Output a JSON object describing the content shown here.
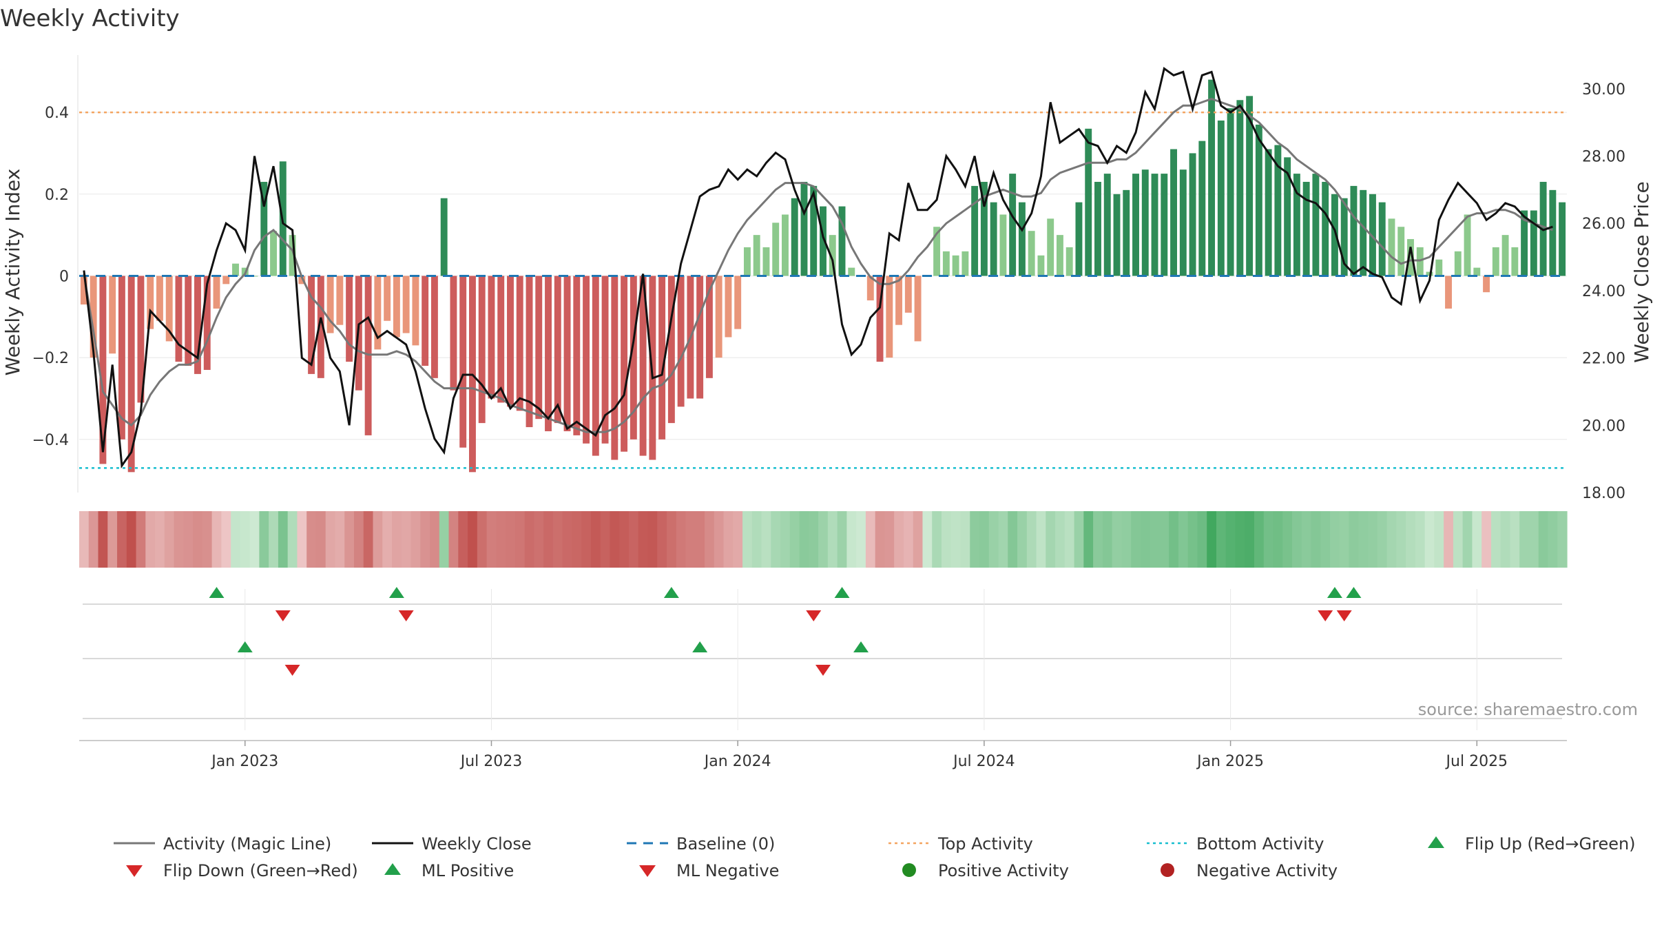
{
  "chart_data": {
    "type": "bar",
    "title": "Weekly Activity",
    "ylabel_left": "Weekly Activity Index",
    "ylabel_right": "Weekly Close Price",
    "source": "source: sharemaestro.com",
    "left_axis": {
      "ylim": [
        -0.53,
        0.54
      ],
      "ticks": [
        0.4,
        0.2,
        0,
        -0.2,
        -0.4
      ],
      "tick_labels": [
        "0.4",
        "0.2",
        "0",
        "−0.2",
        "−0.4"
      ]
    },
    "right_axis": {
      "ylim": [
        18.0,
        31.0
      ],
      "ticks": [
        30,
        28,
        26,
        24,
        22,
        20,
        18
      ],
      "tick_labels": [
        "30.00",
        "28.00",
        "26.00",
        "24.00",
        "22.00",
        "20.00",
        "18.00"
      ]
    },
    "x_ticks": [
      {
        "week": 17,
        "label": "Jan 2023"
      },
      {
        "week": 43,
        "label": "Jul 2023"
      },
      {
        "week": 69,
        "label": "Jan 2024"
      },
      {
        "week": 95,
        "label": "Jul 2024"
      },
      {
        "week": 121,
        "label": "Jan 2025"
      },
      {
        "week": 147,
        "label": "Jul 2025"
      }
    ],
    "weeks": 157,
    "activity": [
      -0.07,
      -0.2,
      -0.46,
      -0.19,
      -0.4,
      -0.48,
      -0.31,
      -0.13,
      -0.11,
      -0.16,
      -0.21,
      -0.22,
      -0.24,
      -0.23,
      -0.08,
      -0.02,
      0.03,
      0.02,
      0.0,
      0.23,
      0.11,
      0.28,
      0.1,
      -0.02,
      -0.24,
      -0.25,
      -0.14,
      -0.12,
      -0.21,
      -0.28,
      -0.39,
      -0.18,
      -0.11,
      -0.15,
      -0.14,
      -0.17,
      -0.22,
      -0.25,
      0.19,
      -0.28,
      -0.42,
      -0.48,
      -0.36,
      -0.3,
      -0.31,
      -0.32,
      -0.33,
      -0.37,
      -0.35,
      -0.38,
      -0.36,
      -0.38,
      -0.39,
      -0.41,
      -0.44,
      -0.41,
      -0.45,
      -0.43,
      -0.4,
      -0.44,
      -0.45,
      -0.4,
      -0.36,
      -0.32,
      -0.3,
      -0.3,
      -0.25,
      -0.2,
      -0.15,
      -0.13,
      0.07,
      0.1,
      0.07,
      0.13,
      0.15,
      0.19,
      0.23,
      0.22,
      0.17,
      0.1,
      0.17,
      0.02,
      0.0,
      -0.06,
      -0.21,
      -0.2,
      -0.12,
      -0.09,
      -0.16,
      0.0,
      0.12,
      0.06,
      0.05,
      0.06,
      0.22,
      0.23,
      0.18,
      0.15,
      0.25,
      0.18,
      0.11,
      0.05,
      0.14,
      0.1,
      0.07,
      0.18,
      0.36,
      0.23,
      0.25,
      0.2,
      0.21,
      0.25,
      0.26,
      0.25,
      0.25,
      0.31,
      0.26,
      0.3,
      0.33,
      0.48,
      0.38,
      0.41,
      0.43,
      0.44,
      0.37,
      0.31,
      0.32,
      0.29,
      0.25,
      0.23,
      0.25,
      0.23,
      0.2,
      0.19,
      0.22,
      0.21,
      0.2,
      0.18,
      0.14,
      0.12,
      0.09,
      0.07,
      0.01,
      0.04,
      -0.08,
      0.06,
      0.15,
      0.02,
      -0.04,
      0.07,
      0.1,
      0.07,
      0.16,
      0.16,
      0.23,
      0.21,
      0.18
    ],
    "close": [
      24.6,
      22.2,
      19.2,
      21.8,
      18.8,
      19.2,
      20.4,
      23.4,
      23.1,
      22.8,
      22.4,
      22.2,
      22.0,
      24.2,
      25.2,
      26.0,
      25.8,
      25.2,
      28.0,
      26.5,
      27.7,
      26.0,
      25.8,
      22.0,
      21.8,
      23.2,
      22.0,
      21.6,
      20.0,
      23.0,
      23.2,
      22.6,
      22.8,
      22.6,
      22.4,
      21.6,
      20.5,
      19.6,
      19.2,
      20.8,
      21.5,
      21.5,
      21.2,
      20.8,
      21.1,
      20.5,
      20.8,
      20.7,
      20.5,
      20.2,
      20.6,
      19.9,
      20.1,
      19.9,
      19.7,
      20.3,
      20.5,
      20.9,
      22.5,
      24.5,
      21.4,
      21.5,
      23.2,
      24.8,
      25.8,
      26.8,
      27.0,
      27.1,
      27.6,
      27.3,
      27.6,
      27.4,
      27.8,
      28.1,
      27.9,
      27.0,
      26.3,
      26.9,
      25.6,
      24.9,
      23.0,
      22.1,
      22.4,
      23.2,
      23.5,
      25.7,
      25.5,
      27.2,
      26.4,
      26.4,
      26.7,
      28.0,
      27.6,
      27.1,
      28.0,
      26.5,
      27.5,
      26.7,
      26.2,
      25.8,
      26.3,
      27.4,
      29.6,
      28.4,
      28.6,
      28.8,
      28.4,
      28.3,
      27.8,
      28.3,
      28.1,
      28.7,
      29.9,
      29.4,
      30.6,
      30.4,
      30.5,
      29.4,
      30.4,
      30.5,
      29.5,
      29.3,
      29.5,
      29.1,
      28.5,
      28.1,
      27.7,
      27.5,
      26.9,
      26.7,
      26.6,
      26.3,
      25.8,
      24.8,
      24.5,
      24.7,
      24.5,
      24.4,
      23.8,
      23.6,
      25.3,
      23.7,
      24.3,
      26.1,
      26.7,
      27.2,
      26.9,
      26.6,
      26.1,
      26.3,
      26.6,
      26.5,
      26.2,
      26.0,
      25.8,
      25.9
    ],
    "magic_line": [
      24.5,
      22.8,
      21.0,
      20.6,
      20.2,
      20.0,
      20.3,
      20.9,
      21.3,
      21.6,
      21.8,
      21.8,
      21.9,
      22.5,
      23.2,
      23.8,
      24.2,
      24.5,
      25.2,
      25.6,
      25.8,
      25.5,
      25.2,
      24.4,
      23.8,
      23.5,
      23.1,
      22.8,
      22.4,
      22.2,
      22.1,
      22.1,
      22.1,
      22.2,
      22.1,
      21.9,
      21.6,
      21.3,
      21.1,
      21.1,
      21.1,
      21.1,
      21.0,
      20.9,
      20.8,
      20.6,
      20.5,
      20.4,
      20.3,
      20.2,
      20.1,
      20.0,
      19.9,
      19.8,
      19.8,
      19.8,
      19.9,
      20.1,
      20.4,
      20.8,
      21.1,
      21.2,
      21.5,
      22.0,
      22.6,
      23.3,
      24.0,
      24.6,
      25.2,
      25.7,
      26.1,
      26.4,
      26.7,
      27.0,
      27.2,
      27.2,
      27.2,
      27.1,
      26.8,
      26.5,
      26.0,
      25.3,
      24.8,
      24.4,
      24.2,
      24.2,
      24.3,
      24.6,
      25.0,
      25.3,
      25.7,
      26.0,
      26.2,
      26.4,
      26.6,
      26.8,
      26.9,
      27.0,
      26.9,
      26.8,
      26.8,
      26.9,
      27.3,
      27.5,
      27.6,
      27.7,
      27.8,
      27.8,
      27.8,
      27.9,
      27.9,
      28.1,
      28.4,
      28.7,
      29.0,
      29.3,
      29.5,
      29.5,
      29.6,
      29.7,
      29.6,
      29.5,
      29.4,
      29.2,
      29.0,
      28.7,
      28.4,
      28.2,
      27.9,
      27.7,
      27.5,
      27.3,
      27.0,
      26.6,
      26.2,
      25.9,
      25.6,
      25.3,
      25.0,
      24.8,
      24.9,
      24.9,
      25.0,
      25.3,
      25.6,
      25.9,
      26.2,
      26.3,
      26.3,
      26.4,
      26.4,
      26.3,
      26.1,
      26.0,
      25.9,
      25.8
    ],
    "top_activity": 0.4,
    "bottom_activity": -0.47,
    "flip_up_weeks": [
      14,
      33,
      62,
      80,
      132,
      134
    ],
    "flip_down_weeks": [
      21,
      34,
      77,
      131,
      133
    ],
    "ml_positive_weeks": [
      17,
      65,
      82
    ],
    "ml_negative_weeks": [
      22,
      78
    ],
    "colors": {
      "green_strong": "#2e8b57",
      "green_light": "#8cc98c",
      "red_strong": "#cd5c5c",
      "red_light": "#e9967a",
      "magic_line": "#777777",
      "close_line": "#111111",
      "baseline": "#1f77b4",
      "top_line": "#f4a460",
      "bottom_line": "#17becf",
      "marker_up": "#22a04b",
      "marker_down": "#d62728",
      "dot_positive": "#228b22",
      "dot_negative": "#b22222"
    },
    "legend": [
      {
        "label": "Activity (Magic Line)",
        "kind": "line",
        "color": "#777777"
      },
      {
        "label": "Weekly Close",
        "kind": "line",
        "color": "#111111"
      },
      {
        "label": "Baseline (0)",
        "kind": "dash",
        "color": "#1f77b4"
      },
      {
        "label": "Top Activity",
        "kind": "dot-line",
        "color": "#f4a460"
      },
      {
        "label": "Bottom Activity",
        "kind": "dot-line",
        "color": "#17becf"
      },
      {
        "label": "Flip Up (Red→Green)",
        "kind": "up",
        "color": "#22a04b"
      },
      {
        "label": "Flip Down (Green→Red)",
        "kind": "down",
        "color": "#d62728"
      },
      {
        "label": "ML Positive",
        "kind": "up",
        "color": "#22a04b"
      },
      {
        "label": "ML Negative",
        "kind": "down",
        "color": "#d62728"
      },
      {
        "label": "Positive Activity",
        "kind": "dot",
        "color": "#228b22"
      },
      {
        "label": "Negative Activity",
        "kind": "dot",
        "color": "#b22222"
      }
    ]
  }
}
